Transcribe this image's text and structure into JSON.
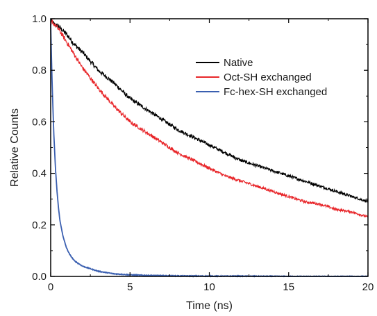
{
  "chart_data": {
    "type": "line",
    "title": "",
    "xlabel": "Time (ns)",
    "ylabel": "Relative Counts",
    "xlim": [
      0,
      20
    ],
    "ylim": [
      0,
      1.0
    ],
    "x_ticks": [
      0,
      5,
      10,
      15,
      20
    ],
    "x_tick_labels": [
      "0",
      "5",
      "10",
      "15",
      "20"
    ],
    "y_ticks": [
      0.0,
      0.2,
      0.4,
      0.6,
      0.8,
      1.0
    ],
    "y_tick_labels": [
      "0.0",
      "0.2",
      "0.4",
      "0.6",
      "0.8",
      "1.0"
    ],
    "grid": false,
    "legend_position": "top-right",
    "series": [
      {
        "name": "Native",
        "color": "#000000",
        "x": [
          0,
          0.1,
          0.2,
          0.5,
          1,
          1.5,
          2,
          3,
          4,
          5,
          6,
          7,
          8,
          9,
          10,
          11,
          12,
          13,
          14,
          15,
          16,
          17,
          18,
          19,
          20
        ],
        "y": [
          0.98,
          0.99,
          0.98,
          0.97,
          0.94,
          0.9,
          0.87,
          0.8,
          0.75,
          0.69,
          0.65,
          0.61,
          0.57,
          0.54,
          0.51,
          0.48,
          0.45,
          0.43,
          0.41,
          0.39,
          0.37,
          0.35,
          0.33,
          0.31,
          0.29
        ]
      },
      {
        "name": "Oct-SH exchanged",
        "color": "#e8262a",
        "x": [
          0,
          0.1,
          0.2,
          0.5,
          1,
          1.5,
          2,
          3,
          4,
          5,
          6,
          7,
          8,
          9,
          10,
          11,
          12,
          13,
          14,
          15,
          16,
          17,
          18,
          19,
          20
        ],
        "y": [
          0.97,
          0.99,
          0.98,
          0.96,
          0.91,
          0.86,
          0.81,
          0.73,
          0.66,
          0.6,
          0.56,
          0.52,
          0.48,
          0.45,
          0.42,
          0.39,
          0.37,
          0.35,
          0.33,
          0.31,
          0.29,
          0.28,
          0.26,
          0.25,
          0.23
        ]
      },
      {
        "name": "Fc-hex-SH exchanged",
        "color": "#3a5fb0",
        "x": [
          0,
          0.05,
          0.1,
          0.2,
          0.3,
          0.4,
          0.5,
          0.6,
          0.8,
          1.0,
          1.2,
          1.5,
          2,
          2.5,
          3,
          4,
          5,
          6,
          7,
          8,
          10,
          12,
          15,
          20
        ],
        "y": [
          0.98,
          0.85,
          0.73,
          0.55,
          0.42,
          0.33,
          0.26,
          0.21,
          0.15,
          0.11,
          0.085,
          0.06,
          0.04,
          0.03,
          0.02,
          0.01,
          0.006,
          0.004,
          0.003,
          0.002,
          0.001,
          0.001,
          0.0,
          0.0
        ]
      }
    ]
  }
}
